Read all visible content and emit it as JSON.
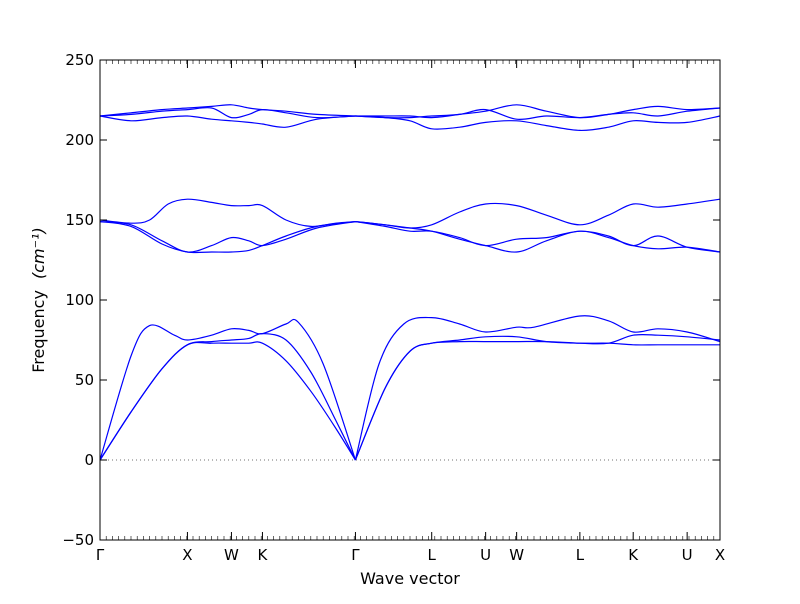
{
  "chart_data": {
    "type": "line",
    "title": "",
    "xlabel": "Wave vector",
    "ylabel": "Frequency",
    "ylabel_unit": "(cm⁻¹)",
    "ylim": [
      -50,
      250
    ],
    "xlim": [
      0,
      10
    ],
    "yticks": [
      -50,
      0,
      50,
      100,
      150,
      200,
      250
    ],
    "ytick_labels": [
      "−50",
      "0",
      "50",
      "100",
      "150",
      "200",
      "250"
    ],
    "xtick_positions": [
      0,
      1.41,
      2.12,
      2.62,
      4.12,
      5.35,
      6.22,
      6.72,
      7.74,
      8.6,
      9.47,
      10
    ],
    "xtick_labels": [
      "Γ",
      "X",
      "W",
      "K",
      "Γ",
      "L",
      "U",
      "W",
      "L",
      "K",
      "U",
      "X"
    ],
    "zero_line": true,
    "line_color": "#0000ff",
    "series": [
      {
        "x": [
          0,
          0.5,
          1.0,
          1.41,
          1.8,
          2.12,
          2.4,
          2.62,
          3.0,
          3.4,
          3.8,
          4.12
        ],
        "values": [
          0,
          30,
          57,
          72,
          73,
          73,
          73,
          73,
          62,
          43,
          20,
          0
        ]
      },
      {
        "x": [
          0,
          0.5,
          1.0,
          1.41,
          1.8,
          2.12,
          2.4,
          2.62,
          3.0,
          3.4,
          3.8,
          4.12
        ],
        "values": [
          0,
          30,
          57,
          72,
          74,
          75,
          76,
          79,
          75,
          55,
          25,
          0
        ]
      },
      {
        "x": [
          0,
          0.5,
          0.8,
          1.2,
          1.41,
          1.8,
          2.12,
          2.4,
          2.62,
          3.0,
          3.2,
          3.6,
          4.12
        ],
        "values": [
          0,
          65,
          84,
          78,
          75,
          78,
          82,
          81,
          79,
          85,
          86,
          60,
          0
        ]
      },
      {
        "x": [
          4.12,
          4.6,
          5.0,
          5.35,
          5.8,
          6.22,
          6.72,
          7.2,
          7.74,
          8.2,
          8.6,
          9.0,
          9.47,
          10
        ],
        "values": [
          0,
          45,
          68,
          73,
          74,
          74,
          74,
          74,
          73,
          73,
          72,
          72,
          72,
          72
        ]
      },
      {
        "x": [
          4.12,
          4.6,
          5.0,
          5.35,
          5.8,
          6.22,
          6.72,
          7.2,
          7.74,
          8.2,
          8.6,
          9.0,
          9.47,
          10
        ],
        "values": [
          0,
          45,
          68,
          73,
          75,
          77,
          77,
          74,
          73,
          73,
          78,
          78,
          77,
          75
        ]
      },
      {
        "x": [
          4.12,
          4.5,
          4.9,
          5.35,
          5.8,
          6.22,
          6.72,
          7.0,
          7.74,
          8.2,
          8.6,
          9.0,
          9.47,
          10
        ],
        "values": [
          0,
          60,
          85,
          89,
          85,
          80,
          83,
          83,
          90,
          87,
          80,
          82,
          80,
          74
        ]
      },
      {
        "x": [
          0,
          0.5,
          1.0,
          1.41,
          1.8,
          2.12,
          2.4,
          2.62,
          3.0,
          3.5,
          4.12
        ],
        "values": [
          149,
          146,
          135,
          130,
          130,
          130,
          131,
          134,
          140,
          146,
          149
        ]
      },
      {
        "x": [
          0,
          0.5,
          1.0,
          1.41,
          1.8,
          2.12,
          2.4,
          2.62,
          3.0,
          3.5,
          4.12
        ],
        "values": [
          149,
          147,
          137,
          130,
          134,
          139,
          137,
          134,
          138,
          145,
          149
        ]
      },
      {
        "x": [
          0,
          0.5,
          0.8,
          1.1,
          1.41,
          1.8,
          2.12,
          2.4,
          2.62,
          3.0,
          3.4,
          3.8,
          4.12
        ],
        "values": [
          150,
          148,
          150,
          160,
          163,
          161,
          159,
          159,
          159,
          150,
          146,
          148,
          149
        ]
      },
      {
        "x": [
          4.12,
          4.6,
          5.0,
          5.35,
          5.8,
          6.22,
          6.72,
          7.2,
          7.74,
          8.2,
          8.6,
          9.0,
          9.47,
          10
        ],
        "values": [
          149,
          147,
          145,
          143,
          138,
          134,
          130,
          137,
          143,
          139,
          134,
          132,
          133,
          130
        ]
      },
      {
        "x": [
          4.12,
          4.6,
          5.0,
          5.35,
          5.8,
          6.22,
          6.72,
          7.2,
          7.74,
          8.2,
          8.6,
          9.0,
          9.47,
          10
        ],
        "values": [
          149,
          146,
          143,
          143,
          139,
          134,
          138,
          139,
          143,
          140,
          134,
          140,
          133,
          130
        ]
      },
      {
        "x": [
          4.12,
          4.6,
          5.0,
          5.35,
          5.8,
          6.22,
          6.72,
          7.2,
          7.74,
          8.2,
          8.6,
          9.0,
          9.47,
          10
        ],
        "values": [
          149,
          147,
          145,
          147,
          155,
          160,
          159,
          153,
          147,
          153,
          160,
          158,
          160,
          163
        ]
      },
      {
        "x": [
          0,
          0.5,
          1.0,
          1.41,
          1.8,
          2.12,
          2.4,
          2.62,
          3.0,
          3.5,
          4.12
        ],
        "values": [
          215,
          212,
          214,
          215,
          213,
          212,
          211,
          210,
          208,
          213,
          215
        ]
      },
      {
        "x": [
          0,
          0.5,
          1.0,
          1.41,
          1.8,
          2.12,
          2.4,
          2.62,
          3.0,
          3.5,
          4.12
        ],
        "values": [
          215,
          216,
          218,
          219,
          220,
          214,
          216,
          219,
          217,
          214,
          215
        ]
      },
      {
        "x": [
          0,
          0.5,
          1.0,
          1.41,
          1.8,
          2.12,
          2.4,
          2.62,
          3.0,
          3.5,
          4.12
        ],
        "values": [
          215,
          217,
          219,
          220,
          221,
          222,
          220,
          219,
          218,
          216,
          215
        ]
      },
      {
        "x": [
          4.12,
          4.6,
          5.0,
          5.35,
          5.8,
          6.22,
          6.72,
          7.2,
          7.74,
          8.2,
          8.6,
          9.0,
          9.47,
          10
        ],
        "values": [
          215,
          214,
          212,
          207,
          208,
          211,
          212,
          209,
          206,
          208,
          212,
          211,
          211,
          215
        ]
      },
      {
        "x": [
          4.12,
          4.6,
          5.0,
          5.35,
          5.8,
          6.22,
          6.72,
          7.2,
          7.74,
          8.2,
          8.6,
          9.0,
          9.47,
          10
        ],
        "values": [
          215,
          214,
          214,
          215,
          216,
          219,
          213,
          215,
          214,
          216,
          217,
          215,
          218,
          220
        ]
      },
      {
        "x": [
          4.12,
          4.6,
          5.0,
          5.35,
          5.8,
          6.22,
          6.72,
          7.2,
          7.74,
          8.2,
          8.6,
          9.0,
          9.47,
          10
        ],
        "values": [
          215,
          215,
          215,
          214,
          216,
          218,
          222,
          218,
          214,
          216,
          219,
          221,
          219,
          220
        ]
      }
    ]
  }
}
